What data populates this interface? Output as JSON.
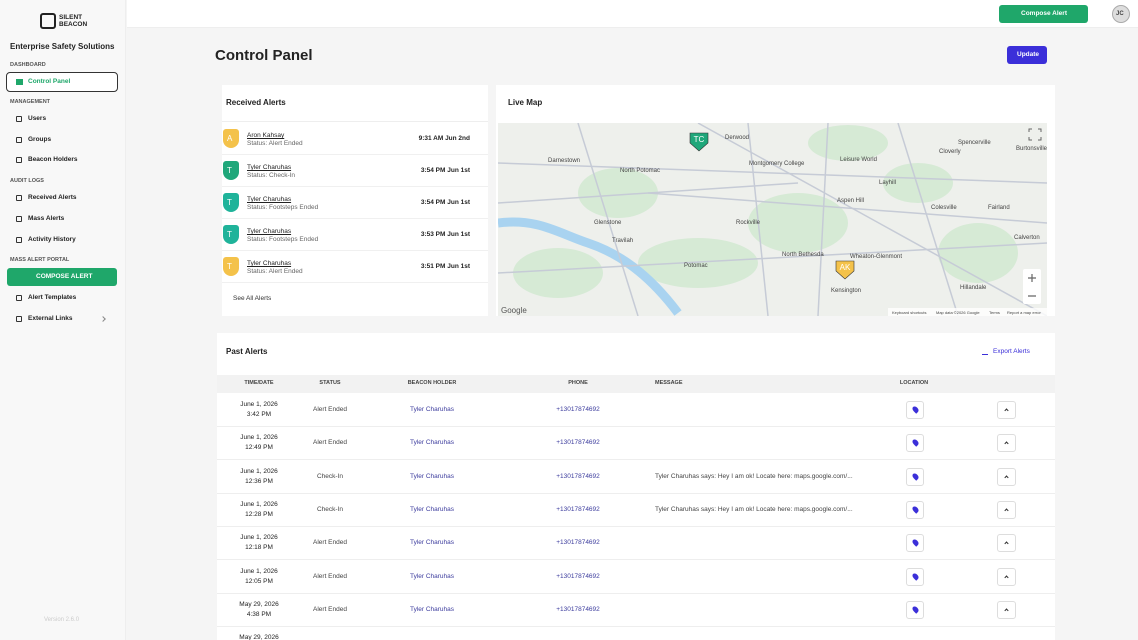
{
  "sidebar": {
    "logo_lines": [
      "SILENT",
      "BEACON"
    ],
    "org": "Enterprise Safety Solutions",
    "sections": [
      {
        "title": "DASHBOARD",
        "items": [
          "Control Panel"
        ]
      },
      {
        "title": "MANAGEMENT",
        "items": [
          "Users",
          "Groups",
          "Beacon Holders"
        ]
      },
      {
        "title": "AUDIT LOGS",
        "items": [
          "Received Alerts",
          "Mass Alerts",
          "Activity History"
        ]
      },
      {
        "title": "MASS ALERT PORTAL",
        "items": [
          "COMPOSE ALERT",
          "Alert Templates",
          "External Links"
        ]
      }
    ],
    "version": "Version 2.6.0"
  },
  "topbar": {
    "compose": "Compose Alert",
    "avatar": "JC"
  },
  "page": {
    "title": "Control Panel",
    "update": "Update"
  },
  "received_alerts": {
    "title": "Received Alerts",
    "items": [
      {
        "initial": "A",
        "name": "Aron Kahsay",
        "status": "Status: Alert Ended",
        "time": "9:31 AM Jun 2nd"
      },
      {
        "initial": "T",
        "name": "Tyler Charuhas",
        "status": "Status: Check-In",
        "time": "3:54 PM Jun 1st"
      },
      {
        "initial": "T",
        "name": "Tyler Charuhas",
        "status": "Status: Footsteps Ended",
        "time": "3:54 PM Jun 1st"
      },
      {
        "initial": "T",
        "name": "Tyler Charuhas",
        "status": "Status: Footsteps Ended",
        "time": "3:53 PM Jun 1st"
      },
      {
        "initial": "T",
        "name": "Tyler Charuhas",
        "status": "Status: Alert Ended",
        "time": "3:51 PM Jun 1st"
      }
    ],
    "see_all": "See All Alerts"
  },
  "live_map": {
    "title": "Live Map",
    "markers": [
      "TC",
      "AK"
    ],
    "labels": [
      "Darnestown",
      "North Potomac",
      "Derwood",
      "Rockville",
      "Aspen Hill",
      "Leisure World",
      "Layhill",
      "Colesville",
      "Cloverly",
      "Spencerville",
      "Burtonsville",
      "Fairland",
      "Calverton",
      "Travilah",
      "Potomac",
      "North Bethesda",
      "Wheaton-Glenmont",
      "Kensington",
      "Hillandale",
      "Glenstone",
      "Montgomery College"
    ],
    "attribution": "Google",
    "footer": [
      "Keyboard shortcuts",
      "Map data ©2026 Google",
      "Terms",
      "Report a map error"
    ]
  },
  "past_alerts": {
    "title": "Past Alerts",
    "export": "Export Alerts",
    "columns": [
      "TIME/DATE",
      "STATUS",
      "BEACON HOLDER",
      "PHONE",
      "MESSAGE",
      "LOCATION"
    ],
    "rows": [
      {
        "date": "June 1, 2026",
        "time": "3:42 PM",
        "status": "Alert Ended",
        "holder": "Tyler Charuhas",
        "phone": "+13017874692"
      },
      {
        "date": "June 1, 2026",
        "time": "12:49 PM",
        "status": "Alert Ended",
        "holder": "Tyler Charuhas",
        "phone": "+13017874692"
      },
      {
        "date": "June 1, 2026",
        "time": "12:36 PM",
        "status": "Check-In",
        "holder": "Tyler Charuhas",
        "phone": "+13017874692",
        "message": "Tyler Charuhas says: Hey I am ok! Locate here: maps.google.com/..."
      },
      {
        "date": "June 1, 2026",
        "time": "12:28 PM",
        "status": "Check-In",
        "holder": "Tyler Charuhas",
        "phone": "+13017874692",
        "message": "Tyler Charuhas says: Hey I am ok! Locate here: maps.google.com/..."
      },
      {
        "date": "June 1, 2026",
        "time": "12:18 PM",
        "status": "Alert Ended",
        "holder": "Tyler Charuhas",
        "phone": "+13017874692"
      },
      {
        "date": "June 1, 2026",
        "time": "12:05 PM",
        "status": "Alert Ended",
        "holder": "Tyler Charuhas",
        "phone": "+13017874692"
      },
      {
        "date": "May 29, 2026",
        "time": "4:38 PM",
        "status": "Alert Ended",
        "holder": "Tyler Charuhas",
        "phone": "+13017874692"
      },
      {
        "date": "May 29, 2026"
      }
    ]
  }
}
